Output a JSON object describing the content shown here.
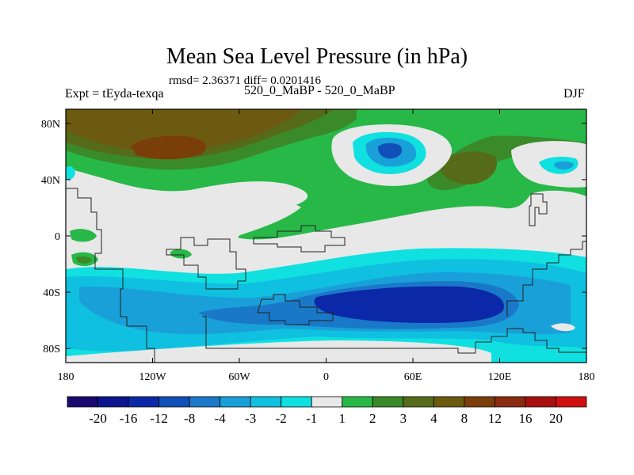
{
  "colors": {
    "ocean": "#e8e8e8",
    "neg20": "#1a0a70",
    "neg16": "#0d1490",
    "neg12": "#0a28a8",
    "neg8": "#1050b8",
    "neg4": "#1a78c8",
    "neg3": "#1aa0d8",
    "neg2": "#10c0e0",
    "neg1": "#10e0e0",
    "p1": "#e8e8e8",
    "p2": "#28b848",
    "p3": "#3a8a2a",
    "p4": "#556b1a",
    "p8": "#6b5a10",
    "p12": "#7a3e0a",
    "p16": "#8a2a10",
    "p20": "#a81010",
    "p24": "#d01010"
  },
  "chart_data": {
    "type": "heatmap",
    "title": "Mean Sea Level Pressure (in hPa)",
    "stats": "rmsd= 2.36371 diff= 0.0201416",
    "left_label": "Expt = tEyda-texqa",
    "center_label": "520_0_MaBP - 520_0_MaBP",
    "right_label": "DJF",
    "xaxis": {
      "range": [
        -180,
        180
      ],
      "ticks": [
        {
          "value": -180,
          "label": "180"
        },
        {
          "value": -120,
          "label": "120W"
        },
        {
          "value": -60,
          "label": "60W"
        },
        {
          "value": 0,
          "label": "0"
        },
        {
          "value": 60,
          "label": "60E"
        },
        {
          "value": 120,
          "label": "120E"
        },
        {
          "value": 180,
          "label": "180"
        }
      ]
    },
    "yaxis": {
      "range": [
        -90,
        90
      ],
      "ticks": [
        {
          "value": 80,
          "label": "80N"
        },
        {
          "value": 40,
          "label": "40N"
        },
        {
          "value": 0,
          "label": "0"
        },
        {
          "value": -40,
          "label": "40S"
        },
        {
          "value": -80,
          "label": "80S"
        }
      ]
    },
    "colorbar": {
      "levels": [
        "-20",
        "-16",
        "-12",
        "-8",
        "-4",
        "-3",
        "-2",
        "-1",
        "1",
        "2",
        "3",
        "4",
        "8",
        "12",
        "16",
        "20"
      ],
      "colors": [
        "#1a0a70",
        "#0d1490",
        "#0a28a8",
        "#1050b8",
        "#1a78c8",
        "#1aa0d8",
        "#10c0e0",
        "#10e0e0",
        "#e8e8e8",
        "#28b848",
        "#3a8a2a",
        "#556b1a",
        "#6b5a10",
        "#7a3e0a",
        "#8a2a10",
        "#a81010",
        "#d01010"
      ]
    }
  }
}
